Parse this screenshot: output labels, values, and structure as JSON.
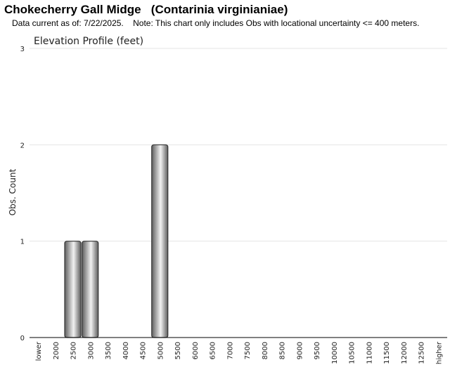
{
  "header": {
    "title": "Chokecherry Gall Midge   (Contarinia virginianiae)",
    "subtitle": "Data current as of: 7/22/2025.    Note: This chart only includes Obs with locational uncertainty <= 400 meters."
  },
  "chart_data": {
    "type": "bar",
    "title": "Elevation Profile (feet)",
    "xlabel": "",
    "ylabel": "Obs. Count",
    "ylim": [
      0,
      3
    ],
    "yticks": [
      0,
      1,
      2,
      3
    ],
    "grid": true,
    "categories": [
      "lower",
      "2000",
      "2500",
      "3000",
      "3500",
      "4000",
      "4500",
      "5000",
      "5500",
      "6000",
      "6500",
      "7000",
      "7500",
      "8000",
      "8500",
      "9000",
      "9500",
      "10000",
      "10500",
      "11000",
      "11500",
      "12000",
      "12500",
      "higher"
    ],
    "values": [
      0,
      0,
      1,
      1,
      0,
      0,
      0,
      2,
      0,
      0,
      0,
      0,
      0,
      0,
      0,
      0,
      0,
      0,
      0,
      0,
      0,
      0,
      0,
      0
    ],
    "colors": {
      "bar_dark": "#5e5e5e",
      "bar_light": "#f2f2f2",
      "bar_stroke": "#333333",
      "grid": "#e4e4e4",
      "axis": "#000000",
      "text": "#222222"
    }
  }
}
